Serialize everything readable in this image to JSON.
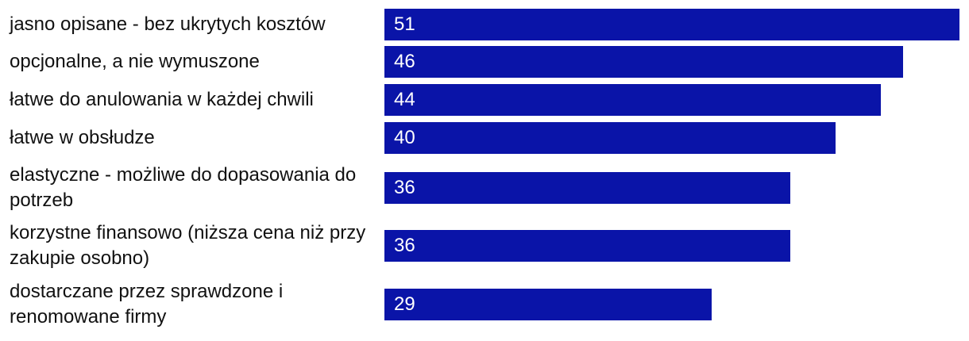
{
  "chart_data": {
    "type": "bar",
    "orientation": "horizontal",
    "categories": [
      "jasno opisane - bez ukrytych kosztów",
      "opcjonalne, a nie wymuszone",
      "łatwe do anulowania w każdej chwili",
      "łatwe w obsłudze",
      "elastyczne - możliwe do dopasowania do potrzeb",
      "korzystne finansowo (niższa cena niż przy zakupie osobno)",
      "dostarczane przez sprawdzone i renomowane firmy"
    ],
    "values": [
      51,
      46,
      44,
      40,
      36,
      36,
      29
    ],
    "data_labels": [
      "51",
      "46",
      "44",
      "40",
      "36",
      "36",
      "29"
    ],
    "bar_color": "#0a14a8",
    "value_label_color": "#ffffff",
    "xlim": [
      0,
      51
    ],
    "grid": false,
    "legend": "none"
  }
}
